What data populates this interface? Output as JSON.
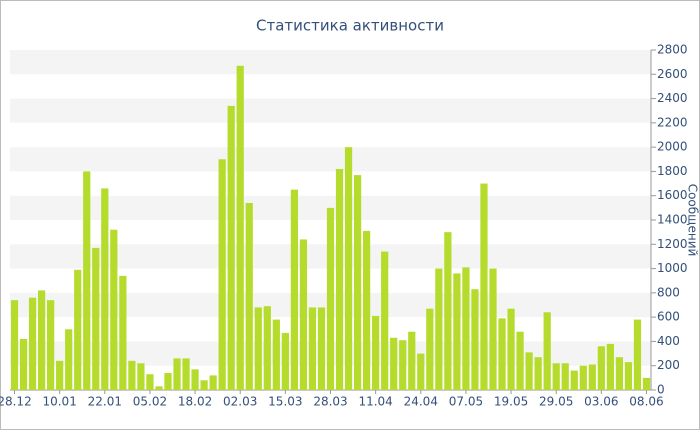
{
  "chart_data": {
    "type": "bar",
    "title": "Статистика активности",
    "y_label": "Сообщений",
    "color": "#b5dc2c",
    "grid": true,
    "categories": [
      "28.12",
      null,
      null,
      null,
      null,
      "10.01",
      null,
      null,
      null,
      null,
      "22.01",
      null,
      null,
      null,
      null,
      "05.02",
      null,
      null,
      null,
      null,
      "18.02",
      null,
      null,
      null,
      null,
      "02.03",
      null,
      null,
      null,
      null,
      "15.03",
      null,
      null,
      null,
      null,
      "28.03",
      null,
      null,
      null,
      null,
      "11.04",
      null,
      null,
      null,
      null,
      "24.04",
      null,
      null,
      null,
      null,
      "07.05",
      null,
      null,
      null,
      null,
      "19.05",
      null,
      null,
      null,
      null,
      "29.05",
      null,
      null,
      null,
      null,
      "03.06",
      null,
      null,
      null,
      null,
      "08.06"
    ],
    "values": [
      740,
      420,
      760,
      820,
      740,
      240,
      500,
      990,
      1800,
      1170,
      1660,
      1320,
      940,
      240,
      220,
      130,
      30,
      140,
      260,
      260,
      170,
      80,
      120,
      1900,
      2340,
      2670,
      1540,
      680,
      690,
      580,
      470,
      1650,
      1240,
      680,
      680,
      1500,
      1820,
      2000,
      1770,
      1310,
      610,
      1140,
      430,
      410,
      480,
      300,
      670,
      1000,
      1300,
      960,
      1010,
      830,
      1700,
      1000,
      590,
      670,
      480,
      310,
      270,
      640,
      220,
      220,
      160,
      200,
      210,
      360,
      380,
      270,
      230,
      580,
      100
    ],
    "ylim": [
      0,
      2800
    ],
    "yticks": [
      0,
      200,
      400,
      600,
      800,
      1000,
      1200,
      1400,
      1600,
      1800,
      2000,
      2200,
      2400,
      2600,
      2800
    ]
  }
}
